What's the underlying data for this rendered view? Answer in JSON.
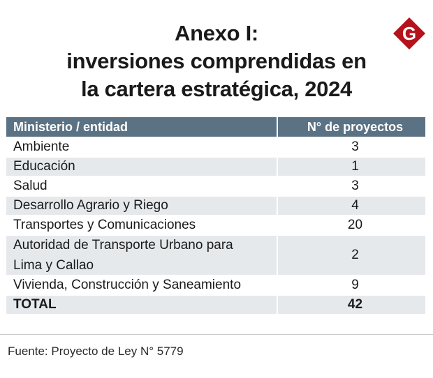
{
  "title": {
    "line1": "Anexo I:",
    "line2": "inversiones comprendidas en",
    "line3": "la cartera estratégica, 2024"
  },
  "logo": {
    "icon": "g-logo-icon",
    "letter": "G",
    "color": "#b5121b"
  },
  "table": {
    "headers": [
      "Ministerio / entidad",
      "N° de proyectos"
    ],
    "rows": [
      {
        "entity": "Ambiente",
        "count": "3"
      },
      {
        "entity": "Educación",
        "count": "1"
      },
      {
        "entity": "Salud",
        "count": "3"
      },
      {
        "entity": "Desarrollo Agrario y Riego",
        "count": "4"
      },
      {
        "entity": "Transportes y Comunicaciones",
        "count": "20"
      },
      {
        "entity_line1": "Autoridad de Transporte Urbano para",
        "entity_line2": "Lima y Callao",
        "count": "2"
      },
      {
        "entity": "Vivienda, Construcción y Saneamiento",
        "count": "9"
      }
    ],
    "total": {
      "label": "TOTAL",
      "count": "42"
    }
  },
  "colors": {
    "header_bg": "#5b7284",
    "alt_row": "#e6e9ec"
  },
  "source": "Fuente: Proyecto de Ley N° 5779"
}
